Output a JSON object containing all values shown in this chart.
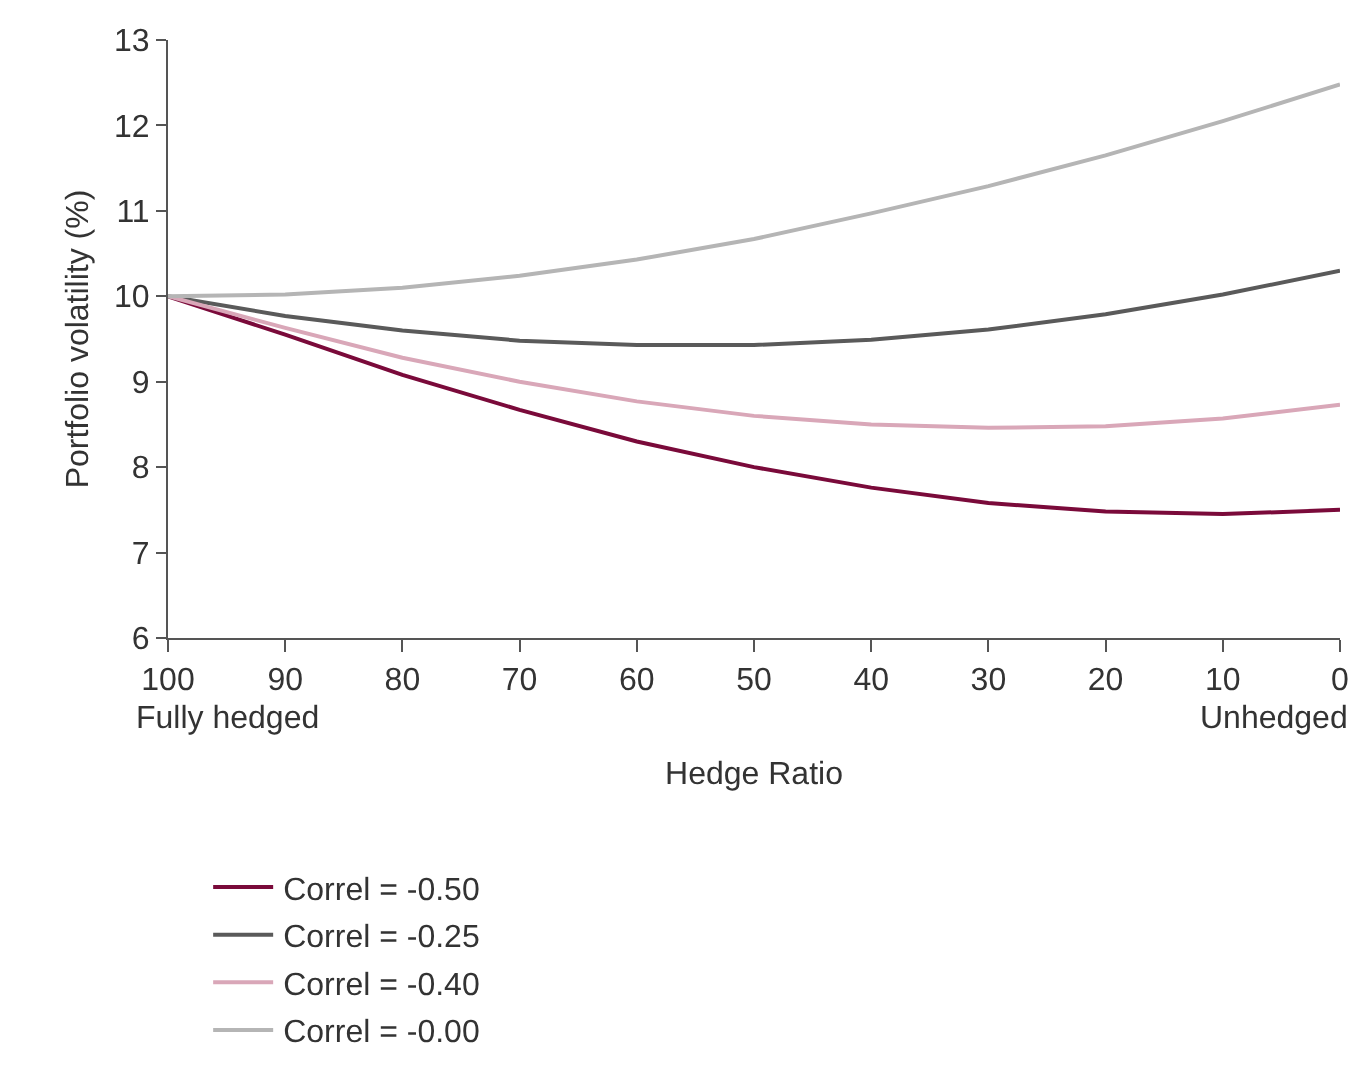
{
  "chart_data": {
    "type": "line",
    "xlabel": "Hedge Ratio",
    "ylabel": "Portfolio volatility (%)",
    "x": [
      100,
      90,
      80,
      70,
      60,
      50,
      40,
      30,
      20,
      10,
      0
    ],
    "xlim": [
      100,
      0
    ],
    "xticks": [
      100,
      90,
      80,
      70,
      60,
      50,
      40,
      30,
      20,
      10,
      0
    ],
    "ylim": [
      6,
      13
    ],
    "yticks": [
      6,
      7,
      8,
      9,
      10,
      11,
      12,
      13
    ],
    "grid": false,
    "legend": "bottom",
    "marker": "none",
    "line_style": "solid",
    "annotations": [
      "Fully hedged",
      "Unhedged"
    ],
    "series": [
      {
        "name": "Correl = -0.50",
        "color": "#7a0a3a",
        "values": [
          10,
          9.55,
          9.08,
          8.67,
          8.3,
          8.0,
          7.76,
          7.58,
          7.48,
          7.45,
          7.5
        ]
      },
      {
        "name": "Correl = -0.25",
        "color": "#5a5a5a",
        "values": [
          10,
          9.77,
          9.6,
          9.48,
          9.43,
          9.43,
          9.49,
          9.61,
          9.79,
          10.02,
          10.3
        ]
      },
      {
        "name": "Correl = -0.40",
        "color": "#d9a7b8",
        "values": [
          10,
          9.63,
          9.28,
          9.0,
          8.77,
          8.6,
          8.5,
          8.46,
          8.48,
          8.57,
          8.73
        ]
      },
      {
        "name": "Correl = -0.00",
        "color": "#b5b5b5",
        "values": [
          10,
          10.02,
          10.1,
          10.24,
          10.43,
          10.67,
          10.97,
          11.29,
          11.65,
          12.05,
          12.48
        ]
      }
    ]
  }
}
